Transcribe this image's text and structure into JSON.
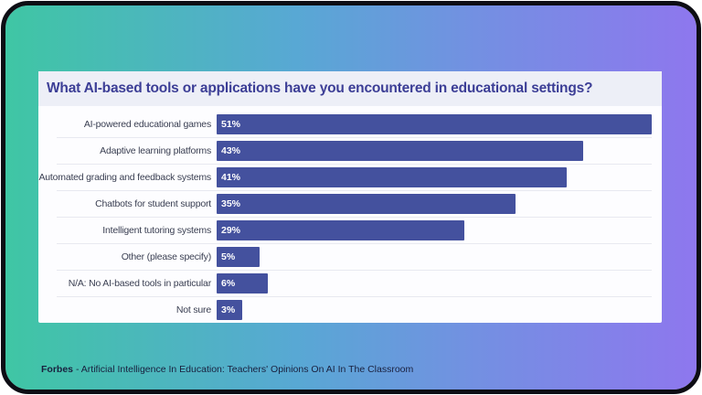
{
  "chart_data": {
    "type": "bar",
    "orientation": "horizontal",
    "title": "What AI-based tools or applications have you encountered in educational settings?",
    "categories": [
      "AI-powered educational games",
      "Adaptive learning platforms",
      "Automated grading and feedback systems",
      "Chatbots for student support",
      "Intelligent tutoring systems",
      "Other (please specify)",
      "N/A: No AI-based tools in particular",
      "Not sure"
    ],
    "values": [
      51,
      43,
      41,
      35,
      29,
      5,
      6,
      3
    ],
    "value_labels": [
      "51%",
      "43%",
      "41%",
      "35%",
      "29%",
      "5%",
      "6%",
      "3%"
    ],
    "unit": "%",
    "xlim": [
      0,
      51
    ],
    "grid": false,
    "legend": false,
    "bar_color": "#44519e"
  },
  "footer": {
    "source": "Forbes",
    "dash": "-",
    "description": "Artificial Intelligence In Education: Teachers' Opinions On AI In The Classroom"
  },
  "colors": {
    "gradient_start": "#3fc6a4",
    "gradient_mid": "#58a8d4",
    "gradient_end": "#8e77ee",
    "frame_border": "#0d0d14",
    "card_bg": "#fdfdff",
    "title_bar_bg": "#edeff7",
    "title_text": "#3c3e96",
    "category_text": "#3a3f52",
    "separator": "#e8e9f0",
    "bar_fill": "#44519e",
    "bar_value_text": "#ffffff",
    "footer_text": "#19203e"
  }
}
